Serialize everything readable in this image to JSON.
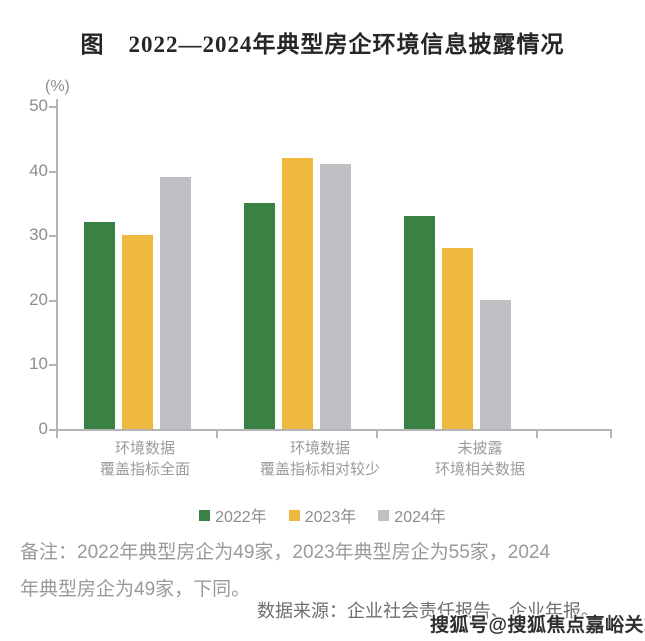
{
  "title": "图　2022—2024年典型房企环境信息披露情况",
  "chart_data": {
    "type": "bar",
    "title": "2022—2024年典型房企环境信息披露情况",
    "unit_label": "(%)",
    "ylim": [
      0,
      50
    ],
    "yticks": [
      0,
      10,
      20,
      30,
      40,
      50
    ],
    "grid": false,
    "legend_position": "bottom",
    "categories": [
      [
        "环境数据",
        "覆盖指标全面"
      ],
      [
        "环境数据",
        "覆盖指标相对较少"
      ],
      [
        "未披露",
        "环境相关数据"
      ]
    ],
    "series": [
      {
        "name": "2022年",
        "color": "#3A8144",
        "values": [
          32,
          35,
          33
        ]
      },
      {
        "name": "2023年",
        "color": "#EEB93E",
        "values": [
          30,
          42,
          28
        ]
      },
      {
        "name": "2024年",
        "color": "#BEC0C4",
        "values": [
          39,
          41,
          20
        ]
      }
    ],
    "axis_color": "#B3B4B6",
    "tick_label_color": "#8E8E8E",
    "category_label_color": "#9B9B9B"
  },
  "note": {
    "line1": "备注：2022年典型房企为49家，2023年典型房企为55家，2024",
    "line2": "年典型房企为49家，下同。"
  },
  "source": "数据来源：企业社会责任报告、企业年报。",
  "watermark": "搜狐号@搜狐焦点嘉峪关站"
}
